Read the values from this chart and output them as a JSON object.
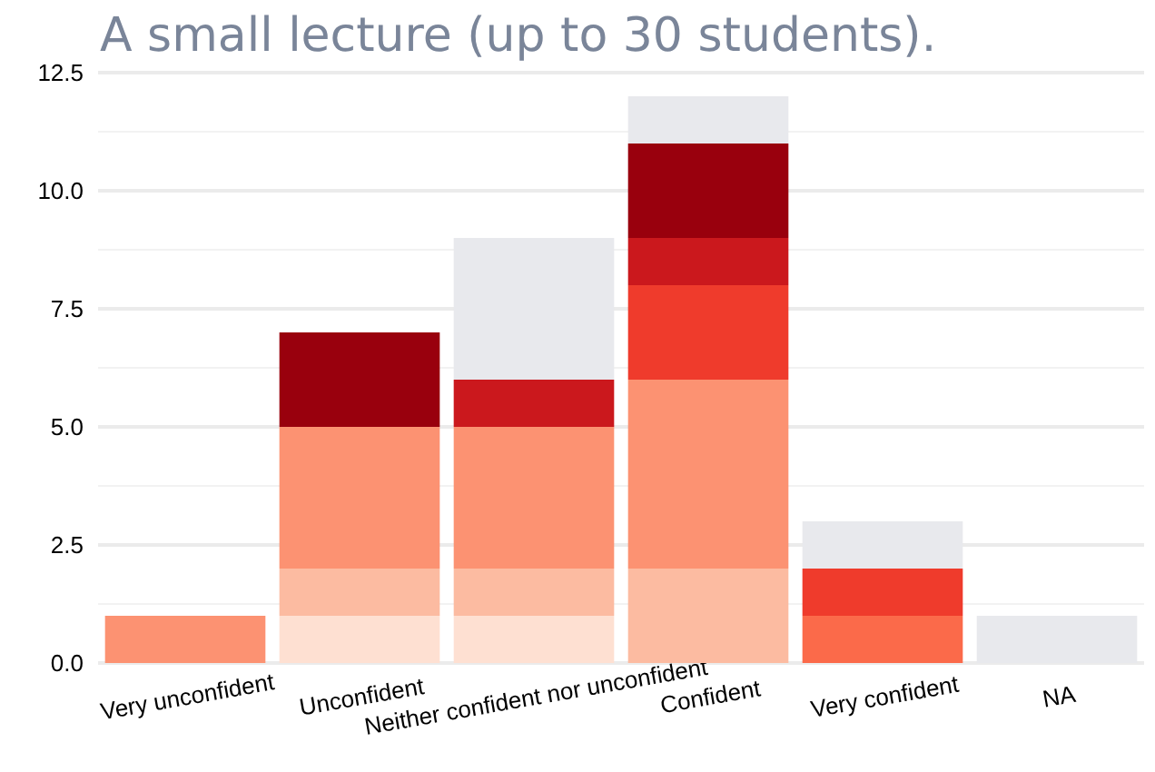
{
  "chart_data": {
    "type": "bar",
    "title": "A small lecture (up to 30 students).",
    "categories": [
      "Very unconfident",
      "Unconfident",
      "Neither confident nor unconfident",
      "Confident",
      "Very confident",
      "NA"
    ],
    "stacked": true,
    "series": [
      {
        "color": "#fee0d2",
        "values": [
          null,
          1,
          1,
          null,
          null,
          null
        ]
      },
      {
        "color": "#fcbba1",
        "values": [
          null,
          1,
          1,
          2,
          null,
          null
        ]
      },
      {
        "color": "#fc9272",
        "values": [
          1,
          3,
          3,
          4,
          null,
          null
        ]
      },
      {
        "color": "#fb6a4a",
        "values": [
          null,
          null,
          null,
          null,
          1,
          null
        ]
      },
      {
        "color": "#ef3b2c",
        "values": [
          null,
          null,
          null,
          2,
          1,
          null
        ]
      },
      {
        "color": "#cb181d",
        "values": [
          null,
          null,
          1,
          1,
          null,
          null
        ]
      },
      {
        "color": "#99000d",
        "values": [
          null,
          2,
          null,
          2,
          null,
          null
        ]
      },
      {
        "color": "#e8e9ed",
        "values": [
          null,
          null,
          3,
          1,
          1,
          1
        ]
      }
    ],
    "ylim": [
      0,
      12.5
    ],
    "yticks": [
      {
        "value": 0,
        "label": "0.0"
      },
      {
        "value": 2.5,
        "label": "2.5"
      },
      {
        "value": 5,
        "label": "5.0"
      },
      {
        "value": 7.5,
        "label": "7.5"
      },
      {
        "value": 10,
        "label": "10.0"
      },
      {
        "value": 12.5,
        "label": "12.5"
      }
    ],
    "grid": "y"
  }
}
